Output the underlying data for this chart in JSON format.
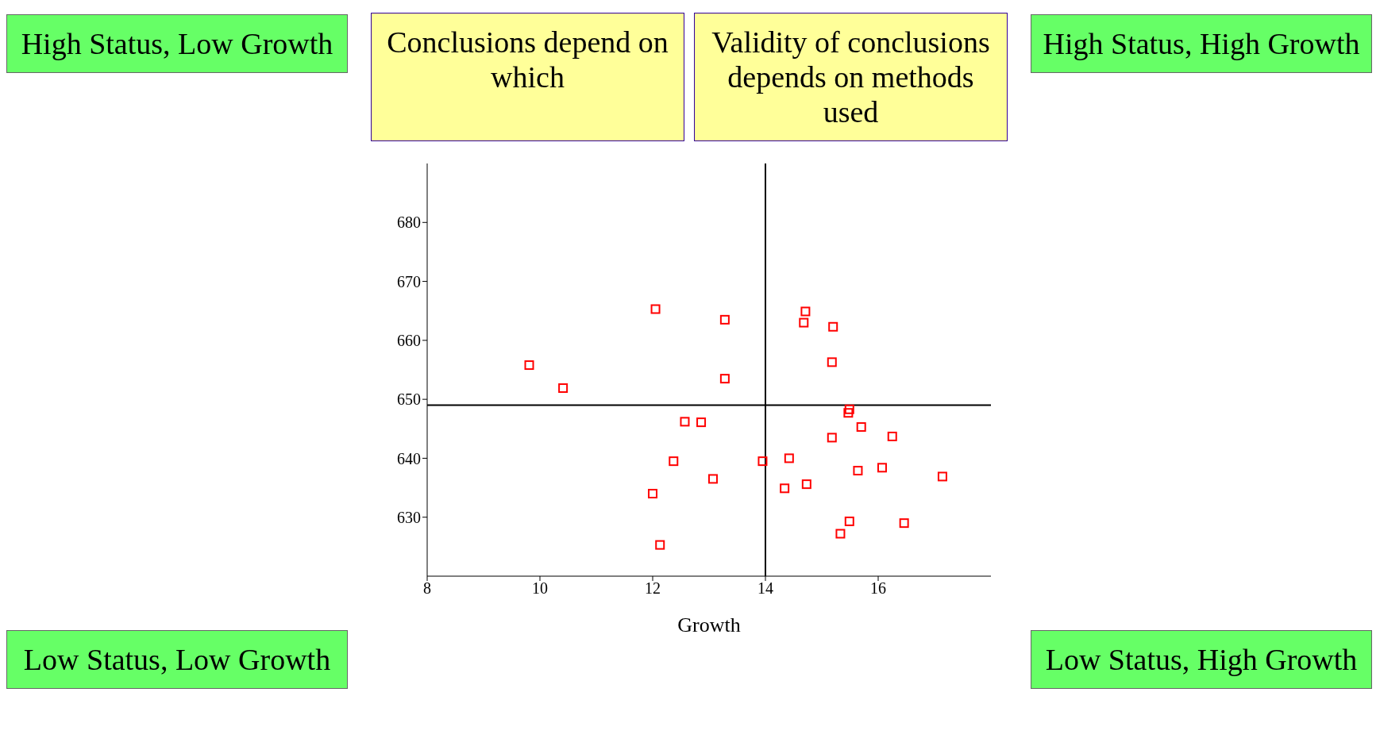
{
  "chart_data": {
    "type": "scatter",
    "xlabel": "Growth",
    "xlim": [
      8,
      18
    ],
    "xticks": [
      8,
      10,
      12,
      14,
      16
    ],
    "ylim": [
      620,
      690
    ],
    "yticks": [
      630,
      640,
      650,
      660,
      670,
      680
    ],
    "marker": "square",
    "x": [
      12.05,
      13.28,
      14.68,
      14.71,
      15.2,
      9.81,
      10.41,
      13.28,
      15.18,
      15.49,
      15.47,
      15.7,
      15.18,
      12.57,
      12.86,
      12.37,
      13.95,
      14.42,
      15.64,
      16.07,
      13.07,
      12.0,
      14.34,
      14.73,
      15.49,
      15.33,
      12.13,
      16.25,
      17.14,
      16.46
    ],
    "series": [
      {
        "color": "#ff0000",
        "values": [
          665.3,
          663.5,
          663.0,
          664.9,
          662.3,
          655.8,
          651.9,
          653.5,
          656.3,
          648.3,
          647.7,
          645.3,
          643.5,
          646.2,
          646.1,
          639.5,
          639.5,
          640.0,
          637.9,
          638.4,
          636.5,
          634.0,
          634.9,
          635.6,
          629.3,
          627.2,
          625.3,
          643.7,
          636.9,
          629.0
        ]
      }
    ],
    "ref_lines": [
      {
        "axis": "x",
        "value": 14
      },
      {
        "axis": "y",
        "value": 649
      }
    ],
    "annotations": [
      "High Status, Low Growth",
      "High Status, High Growth",
      "Low Status, Low Growth",
      "Low Status, High Growth",
      "Conclusions depend on which",
      "Validity of conclusions depends on methods used"
    ]
  }
}
